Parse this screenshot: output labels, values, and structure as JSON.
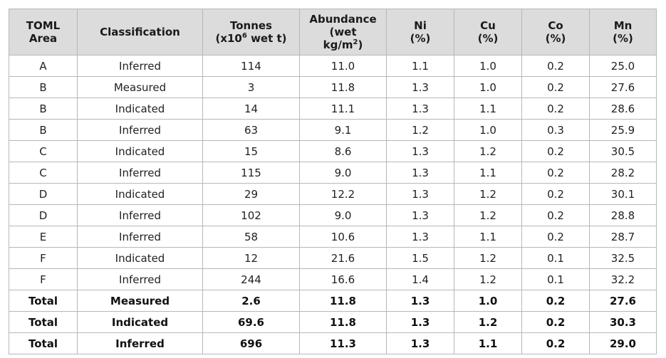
{
  "caption_fragment": "",
  "table": {
    "headers": {
      "area": [
        "TOML",
        "Area"
      ],
      "classification": "Classification",
      "tonnes": {
        "line1": "Tonnes",
        "line2_prefix": "(x10",
        "line2_sup": "6",
        "line2_suffix": " wet t)"
      },
      "abundance": {
        "line1": "Abundance",
        "line2": "(wet",
        "line3_prefix": "kg/m",
        "line3_sup": "2",
        "line3_suffix": ")"
      },
      "ni": [
        "Ni",
        "(%)"
      ],
      "cu": [
        "Cu",
        "(%)"
      ],
      "co": [
        "Co",
        "(%)"
      ],
      "mn": [
        "Mn",
        "(%)"
      ]
    },
    "rows": [
      {
        "area": "A",
        "classification": "Inferred",
        "tonnes": "114",
        "abundance": "11.0",
        "ni": "1.1",
        "cu": "1.0",
        "co": "0.2",
        "mn": "25.0",
        "total": false
      },
      {
        "area": "B",
        "classification": "Measured",
        "tonnes": "3",
        "abundance": "11.8",
        "ni": "1.3",
        "cu": "1.0",
        "co": "0.2",
        "mn": "27.6",
        "total": false
      },
      {
        "area": "B",
        "classification": "Indicated",
        "tonnes": "14",
        "abundance": "11.1",
        "ni": "1.3",
        "cu": "1.1",
        "co": "0.2",
        "mn": "28.6",
        "total": false
      },
      {
        "area": "B",
        "classification": "Inferred",
        "tonnes": "63",
        "abundance": "9.1",
        "ni": "1.2",
        "cu": "1.0",
        "co": "0.3",
        "mn": "25.9",
        "total": false
      },
      {
        "area": "C",
        "classification": "Indicated",
        "tonnes": "15",
        "abundance": "8.6",
        "ni": "1.3",
        "cu": "1.2",
        "co": "0.2",
        "mn": "30.5",
        "total": false
      },
      {
        "area": "C",
        "classification": "Inferred",
        "tonnes": "115",
        "abundance": "9.0",
        "ni": "1.3",
        "cu": "1.1",
        "co": "0.2",
        "mn": "28.2",
        "total": false
      },
      {
        "area": "D",
        "classification": "Indicated",
        "tonnes": "29",
        "abundance": "12.2",
        "ni": "1.3",
        "cu": "1.2",
        "co": "0.2",
        "mn": "30.1",
        "total": false
      },
      {
        "area": "D",
        "classification": "Inferred",
        "tonnes": "102",
        "abundance": "9.0",
        "ni": "1.3",
        "cu": "1.2",
        "co": "0.2",
        "mn": "28.8",
        "total": false
      },
      {
        "area": "E",
        "classification": "Inferred",
        "tonnes": "58",
        "abundance": "10.6",
        "ni": "1.3",
        "cu": "1.1",
        "co": "0.2",
        "mn": "28.7",
        "total": false
      },
      {
        "area": "F",
        "classification": "Indicated",
        "tonnes": "12",
        "abundance": "21.6",
        "ni": "1.5",
        "cu": "1.2",
        "co": "0.1",
        "mn": "32.5",
        "total": false
      },
      {
        "area": "F",
        "classification": "Inferred",
        "tonnes": "244",
        "abundance": "16.6",
        "ni": "1.4",
        "cu": "1.2",
        "co": "0.1",
        "mn": "32.2",
        "total": false
      },
      {
        "area": "Total",
        "classification": "Measured",
        "tonnes": "2.6",
        "abundance": "11.8",
        "ni": "1.3",
        "cu": "1.0",
        "co": "0.2",
        "mn": "27.6",
        "total": true
      },
      {
        "area": "Total",
        "classification": "Indicated",
        "tonnes": "69.6",
        "abundance": "11.8",
        "ni": "1.3",
        "cu": "1.2",
        "co": "0.2",
        "mn": "30.3",
        "total": true
      },
      {
        "area": "Total",
        "classification": "Inferred",
        "tonnes": "696",
        "abundance": "11.3",
        "ni": "1.3",
        "cu": "1.1",
        "co": "0.2",
        "mn": "29.0",
        "total": true
      }
    ]
  },
  "colors": {
    "header_bg": "#dcdcdc",
    "border": "#b7b7b7",
    "text": "#1a1a1a"
  }
}
